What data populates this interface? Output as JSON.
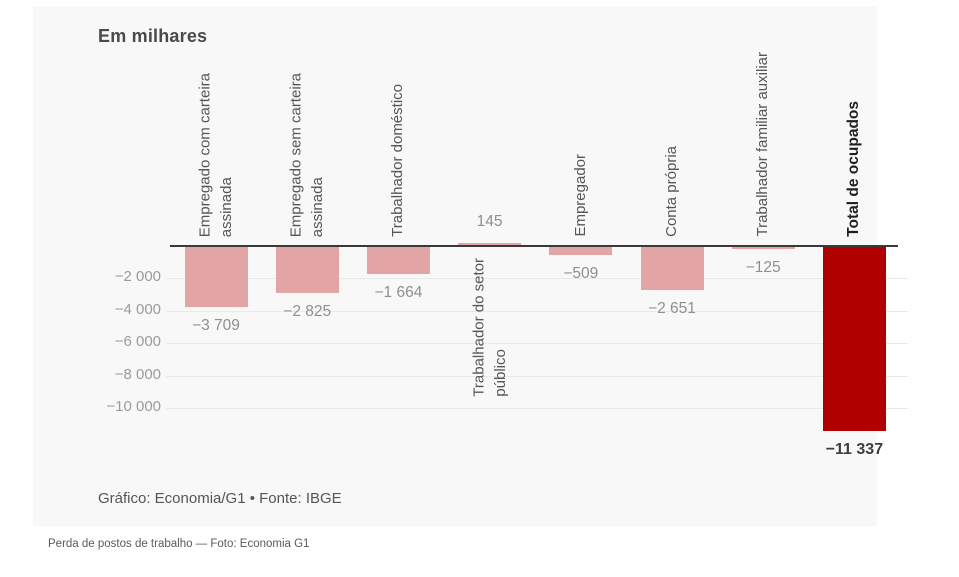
{
  "footer": {
    "credit": "Gráfico: Economia/G1 • Fonte: IBGE"
  },
  "caption": {
    "text": "Perda de postos de trabalho — Foto: Economia G1"
  },
  "chart_data": {
    "type": "bar",
    "title": "Em milhares",
    "xlabel": "",
    "ylabel": "",
    "unit": "milhares",
    "ylim": [
      -11800,
      600
    ],
    "grid": true,
    "legend": "none",
    "yticks": [
      -2000,
      -4000,
      -6000,
      -8000,
      -10000
    ],
    "ytick_labels": [
      "−2 000",
      "−4 000",
      "−6 000",
      "−8 000",
      "−10 000"
    ],
    "categories": [
      "Empregado com carteira assinada",
      "Empregado sem carteira assinada",
      "Trabalhador doméstico",
      "Trabalhador do setor público",
      "Empregador",
      "Conta própria",
      "Trabalhador familiar auxiliar",
      "Total de ocupados"
    ],
    "values": [
      -3709,
      -2825,
      -1664,
      145,
      -509,
      -2651,
      -125,
      -11337
    ],
    "bars": [
      {
        "category": "Empregado com carteira assinada",
        "label_lines": "Empregado com carteira\nassinada",
        "value": -3709,
        "value_label": "−3 709",
        "color": "#e2a4a4",
        "emphasis": false
      },
      {
        "category": "Empregado sem carteira assinada",
        "label_lines": "Empregado sem carteira\nassinada",
        "value": -2825,
        "value_label": "−2 825",
        "color": "#e2a4a4",
        "emphasis": false
      },
      {
        "category": "Trabalhador doméstico",
        "label_lines": "Trabalhador doméstico",
        "value": -1664,
        "value_label": "−1 664",
        "color": "#e2a4a4",
        "emphasis": false
      },
      {
        "category": "Trabalhador do setor público",
        "label_lines": "Trabalhador do setor\npúblico",
        "value": 145,
        "value_label": "145",
        "color": "#e2a4a4",
        "emphasis": false
      },
      {
        "category": "Empregador",
        "label_lines": "Empregador",
        "value": -509,
        "value_label": "−509",
        "color": "#e2a4a4",
        "emphasis": false
      },
      {
        "category": "Conta própria",
        "label_lines": "Conta própria",
        "value": -2651,
        "value_label": "−2 651",
        "color": "#e2a4a4",
        "emphasis": false
      },
      {
        "category": "Trabalhador familiar auxiliar",
        "label_lines": "Trabalhador familiar auxiliar",
        "value": -125,
        "value_label": "−125",
        "color": "#e2a4a4",
        "emphasis": false
      },
      {
        "category": "Total de ocupados",
        "label_lines": "Total de ocupados",
        "value": -11337,
        "value_label": "−11 337",
        "color": "#b00000",
        "emphasis": true
      }
    ],
    "colors": {
      "bar": "#e2a4a4",
      "total_bar": "#b00000",
      "axis": "#3a3a3a",
      "grid": "#e9e9e9"
    }
  }
}
